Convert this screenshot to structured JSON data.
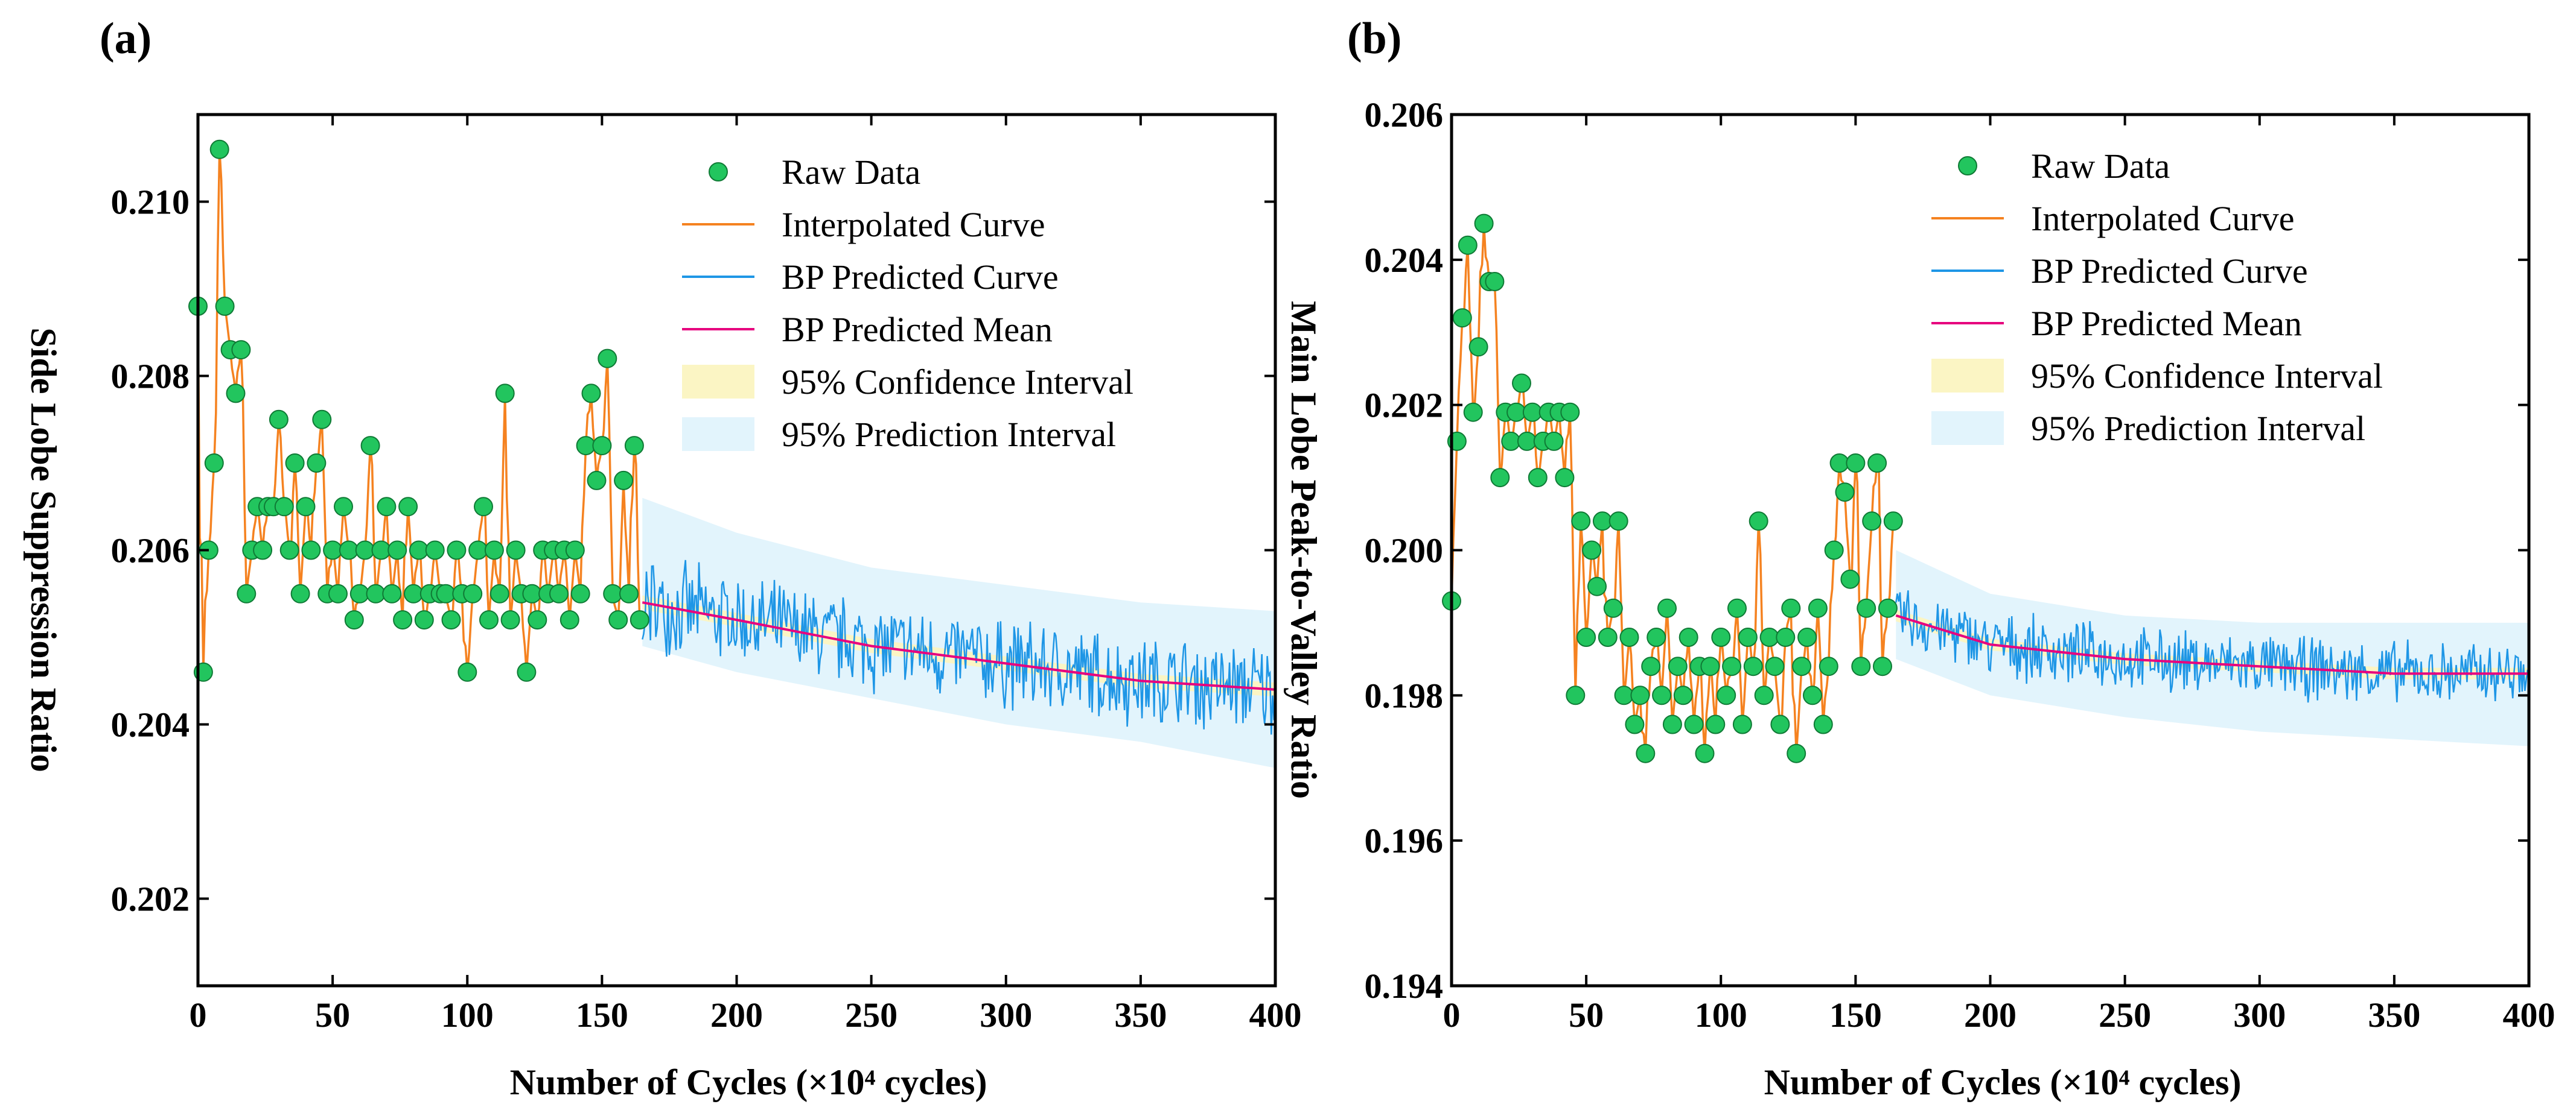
{
  "colors": {
    "raw": "#22c55e",
    "raw_dark": "#0f7a35",
    "interpolated": "#f58220",
    "bp_curve": "#1e96e6",
    "bp_mean": "#e6007e",
    "confidence": "#fbf5c4",
    "prediction": "#e2f4fc"
  },
  "chart_data": [
    {
      "id": "a",
      "panel_label": "(a)",
      "type": "line",
      "xlabel": "Number of Cycles (×10⁴ cycles)",
      "ylabel": "Side Lobe Suppression Ratio",
      "xlim": [
        0,
        400
      ],
      "ylim": [
        0.201,
        0.211
      ],
      "xticks": [
        0,
        50,
        100,
        150,
        200,
        250,
        300,
        350,
        400
      ],
      "yticks": [
        0.202,
        0.204,
        0.206,
        0.208,
        0.21
      ],
      "ytick_labels": [
        "0.202",
        "0.204",
        "0.206",
        "0.208",
        "0.210"
      ],
      "legend": [
        {
          "key": "raw",
          "label": "Raw Data"
        },
        {
          "key": "interpolated",
          "label": "Interpolated Curve"
        },
        {
          "key": "bp_curve",
          "label": "BP Predicted Curve"
        },
        {
          "key": "bp_mean",
          "label": "BP Predicted Mean"
        },
        {
          "key": "confidence",
          "label": "95% Confidence Interval"
        },
        {
          "key": "prediction",
          "label": "95% Prediction Interval"
        }
      ],
      "raw_data": {
        "x": [
          0,
          2,
          4,
          6,
          8,
          10,
          12,
          14,
          16,
          18,
          20,
          22,
          24,
          26,
          28,
          30,
          32,
          34,
          36,
          38,
          40,
          42,
          44,
          46,
          48,
          50,
          52,
          54,
          56,
          58,
          60,
          62,
          64,
          66,
          68,
          70,
          72,
          74,
          76,
          78,
          80,
          82,
          84,
          86,
          88,
          90,
          92,
          94,
          96,
          98,
          100,
          102,
          104,
          106,
          108,
          110,
          112,
          114,
          116,
          118,
          120,
          122,
          124,
          126,
          128,
          130,
          132,
          134,
          136,
          138,
          140,
          142,
          144,
          146,
          148,
          150,
          152,
          154,
          156,
          158,
          160,
          162,
          164
        ],
        "y": [
          0.2088,
          0.2046,
          0.206,
          0.207,
          0.2106,
          0.2088,
          0.2083,
          0.2078,
          0.2083,
          0.2055,
          0.206,
          0.2065,
          0.206,
          0.2065,
          0.2065,
          0.2075,
          0.2065,
          0.206,
          0.207,
          0.2055,
          0.2065,
          0.206,
          0.207,
          0.2075,
          0.2055,
          0.206,
          0.2055,
          0.2065,
          0.206,
          0.2052,
          0.2055,
          0.206,
          0.2072,
          0.2055,
          0.206,
          0.2065,
          0.2055,
          0.206,
          0.2052,
          0.2065,
          0.2055,
          0.206,
          0.2052,
          0.2055,
          0.206,
          0.2055,
          0.2055,
          0.2052,
          0.206,
          0.2055,
          0.2046,
          0.2055,
          0.206,
          0.2065,
          0.2052,
          0.206,
          0.2055,
          0.2078,
          0.2052,
          0.206,
          0.2055,
          0.2046,
          0.2055,
          0.2052,
          0.206,
          0.2055,
          0.206,
          0.2055,
          0.206,
          0.2052,
          0.206,
          0.2055,
          0.2072,
          0.2078,
          0.2068,
          0.2072,
          0.2082,
          0.2055,
          0.2052,
          0.2068,
          0.2055,
          0.2072,
          0.2052
        ]
      },
      "prediction_start": 165,
      "mean_line": {
        "x": [
          165,
          200,
          250,
          300,
          350,
          400
        ],
        "y": [
          0.2054,
          0.2052,
          0.2049,
          0.2047,
          0.2045,
          0.2044
        ]
      },
      "confidence_halfwidth": 8e-05,
      "prediction_band": {
        "x": [
          165,
          200,
          250,
          300,
          350,
          400
        ],
        "lower": [
          0.2049,
          0.2046,
          0.2043,
          0.204,
          0.2038,
          0.2035
        ],
        "upper": [
          0.2066,
          0.2062,
          0.2058,
          0.2056,
          0.2054,
          0.2053
        ]
      },
      "bp_noise_amplitude": 0.0006
    },
    {
      "id": "b",
      "panel_label": "(b)",
      "type": "line",
      "xlabel": "Number of Cycles (×10⁴ cycles)",
      "ylabel": "Main Lobe Peak-to-Valley Ratio",
      "xlim": [
        0,
        400
      ],
      "ylim": [
        0.194,
        0.206
      ],
      "xticks": [
        0,
        50,
        100,
        150,
        200,
        250,
        300,
        350,
        400
      ],
      "yticks": [
        0.194,
        0.196,
        0.198,
        0.2,
        0.202,
        0.204,
        0.206
      ],
      "ytick_labels": [
        "0.194",
        "0.196",
        "0.198",
        "0.200",
        "0.202",
        "0.204",
        "0.206"
      ],
      "legend": [
        {
          "key": "raw",
          "label": "Raw Data"
        },
        {
          "key": "interpolated",
          "label": "Interpolated Curve"
        },
        {
          "key": "bp_curve",
          "label": "BP Predicted Curve"
        },
        {
          "key": "bp_mean",
          "label": "BP Predicted Mean"
        },
        {
          "key": "confidence",
          "label": "95% Confidence Interval"
        },
        {
          "key": "prediction",
          "label": "95% Prediction Interval"
        }
      ],
      "raw_data": {
        "x": [
          0,
          2,
          4,
          6,
          8,
          10,
          12,
          14,
          16,
          18,
          20,
          22,
          24,
          26,
          28,
          30,
          32,
          34,
          36,
          38,
          40,
          42,
          44,
          46,
          48,
          50,
          52,
          54,
          56,
          58,
          60,
          62,
          64,
          66,
          68,
          70,
          72,
          74,
          76,
          78,
          80,
          82,
          84,
          86,
          88,
          90,
          92,
          94,
          96,
          98,
          100,
          102,
          104,
          106,
          108,
          110,
          112,
          114,
          116,
          118,
          120,
          122,
          124,
          126,
          128,
          130,
          132,
          134,
          136,
          138,
          140,
          142,
          144,
          146,
          148,
          150,
          152,
          154,
          156,
          158,
          160,
          162,
          164
        ],
        "y": [
          0.1993,
          0.2015,
          0.2032,
          0.2042,
          0.2019,
          0.2028,
          0.2045,
          0.2037,
          0.2037,
          0.201,
          0.2019,
          0.2015,
          0.2019,
          0.2023,
          0.2015,
          0.2019,
          0.201,
          0.2015,
          0.2019,
          0.2015,
          0.2019,
          0.201,
          0.2019,
          0.198,
          0.2004,
          0.1988,
          0.2,
          0.1995,
          0.2004,
          0.1988,
          0.1992,
          0.2004,
          0.198,
          0.1988,
          0.1976,
          0.198,
          0.1972,
          0.1984,
          0.1988,
          0.198,
          0.1992,
          0.1976,
          0.1984,
          0.198,
          0.1988,
          0.1976,
          0.1984,
          0.1972,
          0.1984,
          0.1976,
          0.1988,
          0.198,
          0.1984,
          0.1992,
          0.1976,
          0.1988,
          0.1984,
          0.2004,
          0.198,
          0.1988,
          0.1984,
          0.1976,
          0.1988,
          0.1992,
          0.1972,
          0.1984,
          0.1988,
          0.198,
          0.1992,
          0.1976,
          0.1984,
          0.2,
          0.2012,
          0.2008,
          0.1996,
          0.2012,
          0.1984,
          0.1992,
          0.2004,
          0.2012,
          0.1984,
          0.1992,
          0.2004
        ]
      },
      "prediction_start": 165,
      "mean_line": {
        "x": [
          165,
          200,
          250,
          300,
          350,
          400
        ],
        "y": [
          0.1991,
          0.1987,
          0.1985,
          0.1984,
          0.1983,
          0.1983
        ]
      },
      "confidence_halfwidth": 8e-05,
      "prediction_band": {
        "x": [
          165,
          200,
          250,
          300,
          350,
          400
        ],
        "lower": [
          0.1985,
          0.198,
          0.1977,
          0.1975,
          0.1974,
          0.1973
        ],
        "upper": [
          0.2,
          0.1994,
          0.1991,
          0.199,
          0.199,
          0.199
        ]
      },
      "bp_noise_amplitude": 0.0005
    }
  ]
}
